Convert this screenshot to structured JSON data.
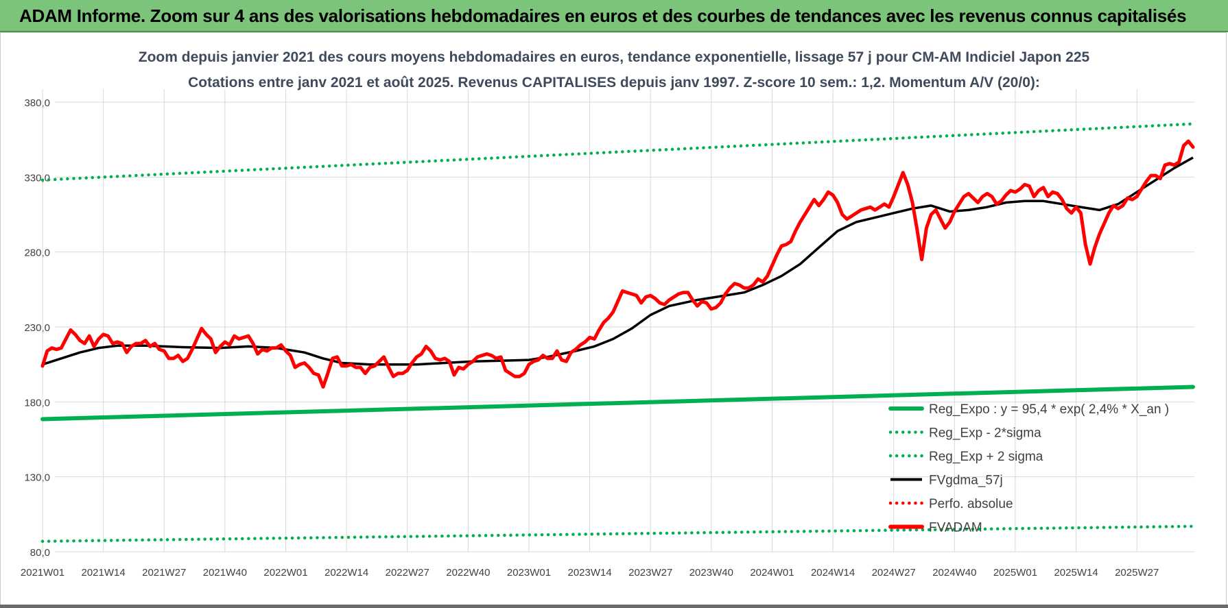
{
  "header": {
    "banner_title": "ADAM Informe. Zoom sur 4 ans des valorisations hebdomadaires en euros et des courbes de tendances avec les revenus connus capitalisés"
  },
  "chart_data": {
    "type": "line",
    "title": "Zoom depuis janvier 2021 des cours moyens hebdomadaires en euros, tendance exponentielle, lissage 57 j pour CM-AM Indiciel Japon 225",
    "subtitle": "Cotations entre janv 2021 et août 2025. Revenus CAPITALISES depuis janv 1997. Z-score 10 sem.: 1,2. Momentum A/V (20/0):",
    "xlabel": "",
    "ylabel": "",
    "ylim": [
      80,
      390
    ],
    "yticks": [
      "80,0",
      "130,0",
      "180,0",
      "230,0",
      "280,0",
      "330,0",
      "380,0"
    ],
    "ytick_values": [
      80,
      130,
      180,
      230,
      280,
      330,
      380
    ],
    "x_tick_labels": [
      "2021W01",
      "2021W14",
      "2021W27",
      "2021W40",
      "2022W01",
      "2022W14",
      "2022W27",
      "2022W40",
      "2023W01",
      "2023W14",
      "2023W27",
      "2023W40",
      "2024W01",
      "2024W14",
      "2024W27",
      "2024W40",
      "2025W01",
      "2025W14",
      "2025W27"
    ],
    "x_tick_index": [
      0,
      13,
      26,
      39,
      52,
      65,
      78,
      91,
      104,
      117,
      130,
      143,
      156,
      169,
      182,
      195,
      208,
      221,
      234
    ],
    "n_weeks": 247,
    "grid": true,
    "legend_position": "bottom-right",
    "series": [
      {
        "name": "Reg_Expo : y = 95,4 * exp( 2,4% *  X_an )",
        "style": "solid-thick",
        "color": "#00b050",
        "points": [
          [
            0,
            168.5
          ],
          [
            246,
            190
          ]
        ]
      },
      {
        "name": "Reg_Exp - 2*sigma",
        "style": "dotted",
        "color": "#00b050",
        "points": [
          [
            0,
            87
          ],
          [
            246,
            97
          ]
        ]
      },
      {
        "name": "Reg_Exp + 2 sigma",
        "style": "dotted",
        "color": "#00b050",
        "points": [
          [
            0,
            328
          ],
          [
            246,
            365.5
          ]
        ]
      },
      {
        "name": "FVgdma_57j",
        "style": "solid",
        "color": "#000000",
        "points": [
          [
            0,
            205
          ],
          [
            4,
            209
          ],
          [
            8,
            213
          ],
          [
            12,
            216
          ],
          [
            16,
            217.5
          ],
          [
            22,
            217.5
          ],
          [
            30,
            216.5
          ],
          [
            38,
            216
          ],
          [
            44,
            217
          ],
          [
            50,
            216
          ],
          [
            56,
            213
          ],
          [
            60,
            209
          ],
          [
            64,
            206
          ],
          [
            70,
            205
          ],
          [
            80,
            205
          ],
          [
            86,
            206
          ],
          [
            92,
            207
          ],
          [
            98,
            207.5
          ],
          [
            104,
            208
          ],
          [
            108,
            210
          ],
          [
            114,
            214
          ],
          [
            118,
            217
          ],
          [
            122,
            222
          ],
          [
            126,
            229
          ],
          [
            130,
            238
          ],
          [
            134,
            244
          ],
          [
            140,
            248
          ],
          [
            146,
            251
          ],
          [
            150,
            253
          ],
          [
            154,
            258
          ],
          [
            158,
            264
          ],
          [
            162,
            272
          ],
          [
            166,
            283
          ],
          [
            170,
            294
          ],
          [
            174,
            300
          ],
          [
            178,
            303
          ],
          [
            182,
            306
          ],
          [
            186,
            309
          ],
          [
            190,
            311
          ],
          [
            194,
            307
          ],
          [
            198,
            308
          ],
          [
            202,
            310
          ],
          [
            206,
            313
          ],
          [
            210,
            314
          ],
          [
            214,
            314
          ],
          [
            218,
            312
          ],
          [
            222,
            310
          ],
          [
            226,
            308
          ],
          [
            230,
            312
          ],
          [
            234,
            320
          ],
          [
            238,
            328
          ],
          [
            242,
            336
          ],
          [
            246,
            343
          ]
        ]
      },
      {
        "name": "Perfo. absolue",
        "style": "dotted",
        "color": "#ff0000",
        "points": []
      },
      {
        "name": "FVADAM",
        "style": "solid-thick",
        "color": "#ff0000",
        "points": [
          [
            0,
            204
          ],
          [
            1,
            214
          ],
          [
            2,
            216
          ],
          [
            3,
            215
          ],
          [
            4,
            216
          ],
          [
            5,
            222
          ],
          [
            6,
            228
          ],
          [
            7,
            225
          ],
          [
            8,
            221
          ],
          [
            9,
            219
          ],
          [
            10,
            224
          ],
          [
            11,
            217
          ],
          [
            12,
            222
          ],
          [
            13,
            225
          ],
          [
            14,
            224
          ],
          [
            15,
            219
          ],
          [
            16,
            220
          ],
          [
            17,
            219
          ],
          [
            18,
            213
          ],
          [
            19,
            217
          ],
          [
            20,
            219
          ],
          [
            21,
            219
          ],
          [
            22,
            221
          ],
          [
            23,
            217
          ],
          [
            24,
            219
          ],
          [
            25,
            215
          ],
          [
            26,
            214
          ],
          [
            27,
            209
          ],
          [
            28,
            209
          ],
          [
            29,
            211
          ],
          [
            30,
            207
          ],
          [
            31,
            209
          ],
          [
            32,
            215
          ],
          [
            33,
            222
          ],
          [
            34,
            229
          ],
          [
            35,
            225
          ],
          [
            36,
            222
          ],
          [
            37,
            213
          ],
          [
            38,
            217
          ],
          [
            39,
            220
          ],
          [
            40,
            218
          ],
          [
            41,
            224
          ],
          [
            42,
            222
          ],
          [
            43,
            223
          ],
          [
            44,
            224
          ],
          [
            45,
            219
          ],
          [
            46,
            212
          ],
          [
            47,
            215
          ],
          [
            48,
            214
          ],
          [
            49,
            216
          ],
          [
            50,
            216
          ],
          [
            51,
            218
          ],
          [
            52,
            214
          ],
          [
            53,
            211
          ],
          [
            54,
            203
          ],
          [
            55,
            205
          ],
          [
            56,
            206
          ],
          [
            57,
            203
          ],
          [
            58,
            199
          ],
          [
            59,
            198
          ],
          [
            60,
            190
          ],
          [
            61,
            199
          ],
          [
            62,
            209
          ],
          [
            63,
            210
          ],
          [
            64,
            204
          ],
          [
            65,
            204
          ],
          [
            66,
            205
          ],
          [
            67,
            203
          ],
          [
            68,
            203
          ],
          [
            69,
            199
          ],
          [
            70,
            203
          ],
          [
            71,
            204
          ],
          [
            72,
            207
          ],
          [
            73,
            210
          ],
          [
            74,
            203
          ],
          [
            75,
            197
          ],
          [
            76,
            199
          ],
          [
            77,
            199
          ],
          [
            78,
            201
          ],
          [
            79,
            206
          ],
          [
            80,
            210
          ],
          [
            81,
            212
          ],
          [
            82,
            217
          ],
          [
            83,
            214
          ],
          [
            84,
            209
          ],
          [
            85,
            208
          ],
          [
            86,
            209
          ],
          [
            87,
            207
          ],
          [
            88,
            198
          ],
          [
            89,
            203
          ],
          [
            90,
            202
          ],
          [
            91,
            205
          ],
          [
            92,
            207
          ],
          [
            93,
            210
          ],
          [
            94,
            211
          ],
          [
            95,
            212
          ],
          [
            96,
            211
          ],
          [
            97,
            209
          ],
          [
            98,
            210
          ],
          [
            99,
            201
          ],
          [
            100,
            199
          ],
          [
            101,
            197
          ],
          [
            102,
            197
          ],
          [
            103,
            199
          ],
          [
            104,
            205
          ],
          [
            105,
            207
          ],
          [
            106,
            208
          ],
          [
            107,
            211
          ],
          [
            108,
            209
          ],
          [
            109,
            209
          ],
          [
            110,
            214
          ],
          [
            111,
            208
          ],
          [
            112,
            207
          ],
          [
            113,
            213
          ],
          [
            114,
            215
          ],
          [
            115,
            218
          ],
          [
            116,
            220
          ],
          [
            117,
            223
          ],
          [
            118,
            222
          ],
          [
            119,
            228
          ],
          [
            120,
            233
          ],
          [
            121,
            236
          ],
          [
            122,
            240
          ],
          [
            123,
            247
          ],
          [
            124,
            254
          ],
          [
            125,
            253
          ],
          [
            126,
            252
          ],
          [
            127,
            251
          ],
          [
            128,
            246
          ],
          [
            129,
            250
          ],
          [
            130,
            251
          ],
          [
            131,
            249
          ],
          [
            132,
            246
          ],
          [
            133,
            245
          ],
          [
            134,
            248
          ],
          [
            135,
            250
          ],
          [
            136,
            252
          ],
          [
            137,
            253
          ],
          [
            138,
            253
          ],
          [
            139,
            248
          ],
          [
            140,
            244
          ],
          [
            141,
            247
          ],
          [
            142,
            246
          ],
          [
            143,
            242
          ],
          [
            144,
            243
          ],
          [
            145,
            246
          ],
          [
            146,
            252
          ],
          [
            147,
            256
          ],
          [
            148,
            259
          ],
          [
            149,
            258
          ],
          [
            150,
            256
          ],
          [
            151,
            256
          ],
          [
            152,
            258
          ],
          [
            153,
            262
          ],
          [
            154,
            260
          ],
          [
            155,
            264
          ],
          [
            156,
            271
          ],
          [
            157,
            278
          ],
          [
            158,
            284
          ],
          [
            159,
            285
          ],
          [
            160,
            287
          ],
          [
            161,
            294
          ],
          [
            162,
            300
          ],
          [
            163,
            305
          ],
          [
            164,
            310
          ],
          [
            165,
            315
          ],
          [
            166,
            311
          ],
          [
            167,
            315
          ],
          [
            168,
            320
          ],
          [
            169,
            318
          ],
          [
            170,
            313
          ],
          [
            171,
            305
          ],
          [
            172,
            302
          ],
          [
            173,
            304
          ],
          [
            174,
            306
          ],
          [
            175,
            308
          ],
          [
            176,
            309
          ],
          [
            177,
            310
          ],
          [
            178,
            308
          ],
          [
            179,
            310
          ],
          [
            180,
            312
          ],
          [
            181,
            310
          ],
          [
            182,
            317
          ],
          [
            183,
            325
          ],
          [
            184,
            333
          ],
          [
            185,
            325
          ],
          [
            186,
            313
          ],
          [
            187,
            295
          ],
          [
            188,
            275
          ],
          [
            189,
            296
          ],
          [
            190,
            305
          ],
          [
            191,
            308
          ],
          [
            192,
            302
          ],
          [
            193,
            296
          ],
          [
            194,
            300
          ],
          [
            195,
            307
          ],
          [
            196,
            312
          ],
          [
            197,
            317
          ],
          [
            198,
            319
          ],
          [
            199,
            316
          ],
          [
            200,
            313
          ],
          [
            201,
            317
          ],
          [
            202,
            319
          ],
          [
            203,
            317
          ],
          [
            204,
            312
          ],
          [
            205,
            314
          ],
          [
            206,
            318
          ],
          [
            207,
            321
          ],
          [
            208,
            320
          ],
          [
            209,
            322
          ],
          [
            210,
            325
          ],
          [
            211,
            324
          ],
          [
            212,
            317
          ],
          [
            213,
            321
          ],
          [
            214,
            323
          ],
          [
            215,
            317
          ],
          [
            216,
            320
          ],
          [
            217,
            319
          ],
          [
            218,
            315
          ],
          [
            219,
            309
          ],
          [
            220,
            306
          ],
          [
            221,
            310
          ],
          [
            222,
            306
          ],
          [
            223,
            285
          ],
          [
            224,
            272
          ],
          [
            225,
            283
          ],
          [
            226,
            292
          ],
          [
            227,
            299
          ],
          [
            228,
            306
          ],
          [
            229,
            311
          ],
          [
            230,
            309
          ],
          [
            231,
            311
          ],
          [
            232,
            316
          ],
          [
            233,
            315
          ],
          [
            234,
            317
          ],
          [
            235,
            322
          ],
          [
            236,
            327
          ],
          [
            237,
            331
          ],
          [
            238,
            331
          ],
          [
            239,
            329
          ],
          [
            240,
            338
          ],
          [
            241,
            339
          ],
          [
            242,
            338
          ],
          [
            243,
            340
          ],
          [
            244,
            351
          ],
          [
            245,
            354
          ],
          [
            246,
            350
          ]
        ]
      }
    ]
  }
}
